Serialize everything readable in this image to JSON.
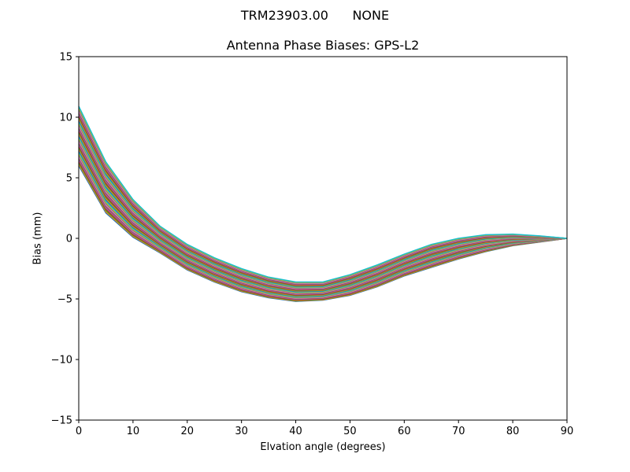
{
  "figure": {
    "suptitle": "TRM23903.00      NONE"
  },
  "chart_data": {
    "type": "line",
    "title": "Antenna Phase Biases: GPS-L2",
    "xlabel": "Elvation angle (degrees)",
    "ylabel": "Bias (mm)",
    "xlim": [
      0,
      90
    ],
    "ylim": [
      -15,
      15
    ],
    "xticks": [
      0,
      10,
      20,
      30,
      40,
      50,
      60,
      70,
      80,
      90
    ],
    "xtick_labels": [
      "0",
      "10",
      "20",
      "30",
      "40",
      "50",
      "60",
      "70",
      "80",
      "90"
    ],
    "yticks": [
      -15,
      -10,
      -5,
      0,
      5,
      10,
      15
    ],
    "ytick_labels": [
      "−15",
      "−10",
      "−5",
      "0",
      "5",
      "10",
      "15"
    ],
    "grid": false,
    "legend": "none",
    "x": [
      0,
      5,
      10,
      15,
      20,
      25,
      30,
      35,
      40,
      45,
      50,
      55,
      60,
      65,
      70,
      75,
      80,
      85,
      90
    ],
    "envelope": {
      "upper": [
        10.9,
        6.3,
        3.2,
        1.0,
        -0.5,
        -1.6,
        -2.5,
        -3.2,
        -3.6,
        -3.6,
        -3.0,
        -2.2,
        -1.3,
        -0.5,
        0.0,
        0.3,
        0.35,
        0.2,
        0.0
      ],
      "lower": [
        6.0,
        2.1,
        0.1,
        -1.2,
        -2.6,
        -3.6,
        -4.4,
        -4.9,
        -5.2,
        -5.1,
        -4.7,
        -4.0,
        -3.1,
        -2.4,
        -1.7,
        -1.1,
        -0.6,
        -0.3,
        0.0
      ]
    },
    "series_count": 40,
    "series_colors": [
      "#1f77b4",
      "#ff7f0e",
      "#2ca02c",
      "#d62728",
      "#9467bd",
      "#8c564b",
      "#e377c2",
      "#7f7f7f",
      "#bcbd22",
      "#17becf"
    ]
  }
}
